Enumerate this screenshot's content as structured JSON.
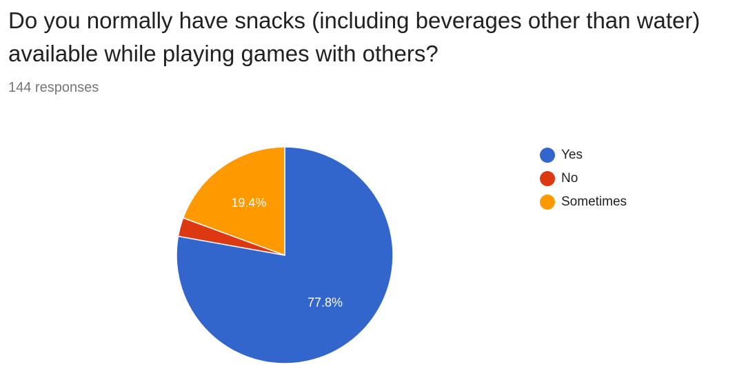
{
  "question": "Do you normally have snacks (including beverages other than water) available while playing games with others?",
  "responses_text": "144 responses",
  "chart_data": {
    "type": "pie",
    "total_responses": 144,
    "categories": [
      "Yes",
      "No",
      "Sometimes"
    ],
    "values": [
      77.8,
      2.8,
      19.4
    ],
    "colors": [
      "#3366cc",
      "#dc3912",
      "#ff9900"
    ],
    "data_labels": [
      "77.8%",
      "",
      "19.4%"
    ],
    "legend_position": "right"
  }
}
